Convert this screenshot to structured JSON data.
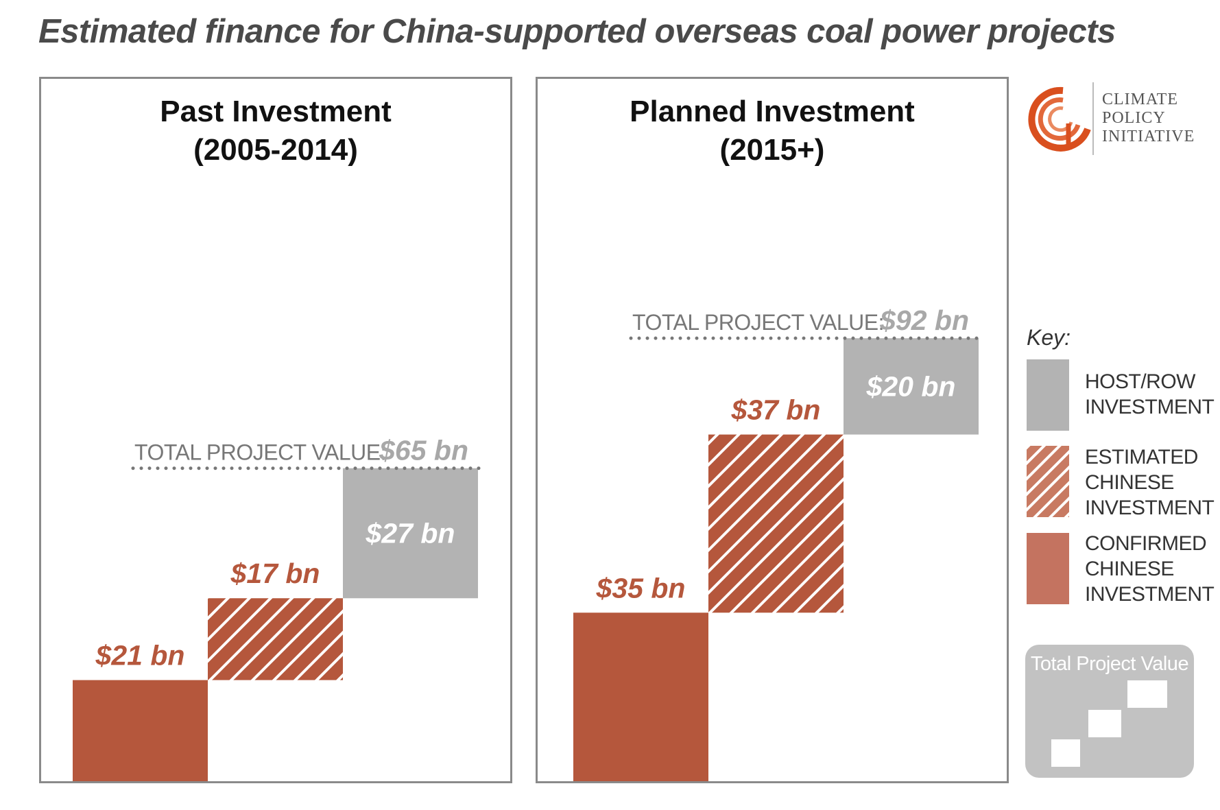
{
  "title": "Estimated finance for China-supported overseas coal power projects",
  "logo": {
    "lines": [
      "CLIMATE",
      "POLICY",
      "INITIATIVE"
    ],
    "icon": "spiral-logo-icon",
    "color": "#d94f1e"
  },
  "colors": {
    "confirmed": "#b5573c",
    "estimated": "#b5573c",
    "host": "#b3b3b3",
    "total_text": "#a8a8a8",
    "total_label": "#777777",
    "dots": "#777777"
  },
  "chart_data": [
    {
      "type": "bar",
      "title": "Past Investment (2005-2014)",
      "title_lines": [
        "Past Investment",
        "(2005-2014)"
      ],
      "stack": "waterfall",
      "series": [
        {
          "name": "CONFIRMED CHINESE INVESTMENT",
          "value": 21,
          "label": "$21 bn"
        },
        {
          "name": "ESTIMATED CHINESE INVESTMENT",
          "value": 17,
          "label": "$17 bn"
        },
        {
          "name": "HOST/ROW INVESTMENT",
          "value": 27,
          "label": "$27 bn"
        }
      ],
      "total": {
        "label": "TOTAL PROJECT VALUE:",
        "value": 65,
        "value_label": "$65 bn"
      },
      "ylim": [
        0,
        100
      ]
    },
    {
      "type": "bar",
      "title": "Planned Investment (2015+)",
      "title_lines": [
        "Planned Investment",
        "(2015+)"
      ],
      "stack": "waterfall",
      "series": [
        {
          "name": "CONFIRMED CHINESE INVESTMENT",
          "value": 35,
          "label": "$35 bn"
        },
        {
          "name": "ESTIMATED CHINESE INVESTMENT",
          "value": 37,
          "label": "$37 bn"
        },
        {
          "name": "HOST/ROW INVESTMENT",
          "value": 20,
          "label": "$20 bn"
        }
      ],
      "total": {
        "label": "TOTAL PROJECT VALUE:",
        "value": 92,
        "value_label": "$92 bn"
      },
      "ylim": [
        0,
        100
      ]
    }
  ],
  "key": {
    "title": "Key:",
    "items": [
      {
        "lines": [
          "HOST/ROW",
          "INVESTMENT"
        ],
        "style": "solid-gray"
      },
      {
        "lines": [
          "ESTIMATED",
          "CHINESE",
          "INVESTMENT"
        ],
        "style": "hatched-red"
      },
      {
        "lines": [
          "CONFIRMED",
          "CHINESE",
          "INVESTMENT"
        ],
        "style": "solid-red"
      }
    ],
    "total_card_label": "Total Project Value"
  }
}
